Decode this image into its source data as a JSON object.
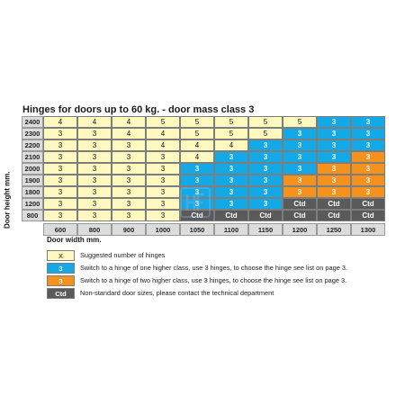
{
  "title": "Hinges for doors up to 60 kg. - door mass class 3",
  "y_axis_label": "Door height mm.",
  "x_axis_label": "Door width mm.",
  "colors": {
    "suggested": "#fff9c0",
    "one_higher": "#12a9e6",
    "two_higher": "#f5921e",
    "non_standard": "#5a5a5a"
  },
  "chart_data": {
    "type": "table",
    "title": "Hinges for doors up to 60 kg. - door mass class 3",
    "xlabel": "Door width mm.",
    "ylabel": "Door height mm.",
    "columns": [
      "600",
      "800",
      "900",
      "1000",
      "1050",
      "1100",
      "1150",
      "1200",
      "1250",
      "1300"
    ],
    "rows": [
      {
        "height": "2400",
        "cells": [
          {
            "v": "4",
            "c": "y"
          },
          {
            "v": "4",
            "c": "y"
          },
          {
            "v": "4",
            "c": "y"
          },
          {
            "v": "5",
            "c": "y"
          },
          {
            "v": "5",
            "c": "y"
          },
          {
            "v": "5",
            "c": "y"
          },
          {
            "v": "5",
            "c": "y"
          },
          {
            "v": "5",
            "c": "y"
          },
          {
            "v": "3",
            "c": "b"
          },
          {
            "v": "3",
            "c": "b"
          }
        ]
      },
      {
        "height": "2300",
        "cells": [
          {
            "v": "3",
            "c": "y"
          },
          {
            "v": "3",
            "c": "y"
          },
          {
            "v": "4",
            "c": "y"
          },
          {
            "v": "4",
            "c": "y"
          },
          {
            "v": "5",
            "c": "y"
          },
          {
            "v": "5",
            "c": "y"
          },
          {
            "v": "5",
            "c": "y"
          },
          {
            "v": "3",
            "c": "b"
          },
          {
            "v": "3",
            "c": "b"
          },
          {
            "v": "3",
            "c": "b"
          }
        ]
      },
      {
        "height": "2200",
        "cells": [
          {
            "v": "3",
            "c": "y"
          },
          {
            "v": "3",
            "c": "y"
          },
          {
            "v": "3",
            "c": "y"
          },
          {
            "v": "4",
            "c": "y"
          },
          {
            "v": "4",
            "c": "y"
          },
          {
            "v": "4",
            "c": "y"
          },
          {
            "v": "3",
            "c": "b"
          },
          {
            "v": "3",
            "c": "b"
          },
          {
            "v": "3",
            "c": "b"
          },
          {
            "v": "3",
            "c": "b"
          }
        ]
      },
      {
        "height": "2100",
        "cells": [
          {
            "v": "3",
            "c": "y"
          },
          {
            "v": "3",
            "c": "y"
          },
          {
            "v": "3",
            "c": "y"
          },
          {
            "v": "3",
            "c": "y"
          },
          {
            "v": "4",
            "c": "y"
          },
          {
            "v": "3",
            "c": "b"
          },
          {
            "v": "3",
            "c": "b"
          },
          {
            "v": "3",
            "c": "b"
          },
          {
            "v": "3",
            "c": "b"
          },
          {
            "v": "3",
            "c": "o"
          }
        ]
      },
      {
        "height": "2000",
        "cells": [
          {
            "v": "3",
            "c": "y"
          },
          {
            "v": "3",
            "c": "y"
          },
          {
            "v": "3",
            "c": "y"
          },
          {
            "v": "3",
            "c": "y"
          },
          {
            "v": "3",
            "c": "b"
          },
          {
            "v": "3",
            "c": "b"
          },
          {
            "v": "3",
            "c": "b"
          },
          {
            "v": "3",
            "c": "b"
          },
          {
            "v": "3",
            "c": "o"
          },
          {
            "v": "3",
            "c": "o"
          }
        ]
      },
      {
        "height": "1900",
        "cells": [
          {
            "v": "3",
            "c": "y"
          },
          {
            "v": "3",
            "c": "y"
          },
          {
            "v": "3",
            "c": "y"
          },
          {
            "v": "3",
            "c": "y"
          },
          {
            "v": "3",
            "c": "b"
          },
          {
            "v": "3",
            "c": "b"
          },
          {
            "v": "3",
            "c": "b"
          },
          {
            "v": "3",
            "c": "o"
          },
          {
            "v": "3",
            "c": "o"
          },
          {
            "v": "3",
            "c": "o"
          }
        ]
      },
      {
        "height": "1800",
        "cells": [
          {
            "v": "3",
            "c": "y"
          },
          {
            "v": "3",
            "c": "y"
          },
          {
            "v": "3",
            "c": "y"
          },
          {
            "v": "3",
            "c": "y"
          },
          {
            "v": "3",
            "c": "b"
          },
          {
            "v": "3",
            "c": "b"
          },
          {
            "v": "3",
            "c": "b"
          },
          {
            "v": "3",
            "c": "o"
          },
          {
            "v": "3",
            "c": "o"
          },
          {
            "v": "3",
            "c": "o"
          }
        ]
      },
      {
        "height": "1200",
        "cells": [
          {
            "v": "3",
            "c": "y"
          },
          {
            "v": "3",
            "c": "y"
          },
          {
            "v": "3",
            "c": "y"
          },
          {
            "v": "3",
            "c": "y"
          },
          {
            "v": "3",
            "c": "b"
          },
          {
            "v": "3",
            "c": "b"
          },
          {
            "v": "3",
            "c": "b"
          },
          {
            "v": "Ctd",
            "c": "g"
          },
          {
            "v": "Ctd",
            "c": "g"
          },
          {
            "v": "Ctd",
            "c": "g"
          }
        ]
      },
      {
        "height": "800",
        "cells": [
          {
            "v": "3",
            "c": "y"
          },
          {
            "v": "3",
            "c": "y"
          },
          {
            "v": "3",
            "c": "y"
          },
          {
            "v": "3",
            "c": "y"
          },
          {
            "v": "Ctd",
            "c": "g"
          },
          {
            "v": "Ctd",
            "c": "g"
          },
          {
            "v": "Ctd",
            "c": "g"
          },
          {
            "v": "Ctd",
            "c": "g"
          },
          {
            "v": "Ctd",
            "c": "g"
          },
          {
            "v": "Ctd",
            "c": "g"
          }
        ]
      }
    ]
  },
  "legend": [
    {
      "swatch": "X",
      "kind": "y",
      "text": "Suggested number of hinges"
    },
    {
      "swatch": "3",
      "kind": "b",
      "text": "Switch to a hinge of one higher class, use 3 hinges, to choose the hinge see list on page 3."
    },
    {
      "swatch": "3",
      "kind": "o",
      "text": "Switch to a hinge of two higher class, use 3 hinges, to choose the hinge see list on page 3."
    },
    {
      "swatch": "Ctd",
      "kind": "g",
      "text": "Non-standard door sizes, please contact the technical department"
    }
  ]
}
